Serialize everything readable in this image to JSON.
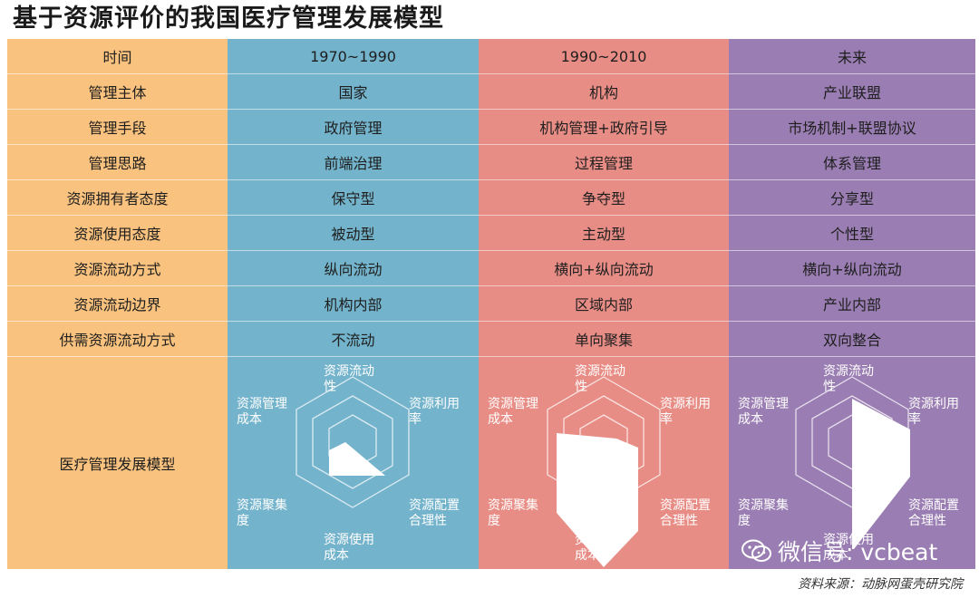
{
  "title": "基于资源评价的我国医疗管理发展模型",
  "header": {
    "label": "时间",
    "periods": [
      "1970~1990",
      "1990~2010",
      "未来"
    ]
  },
  "rows": [
    {
      "label": "管理主体",
      "values": [
        "国家",
        "机构",
        "产业联盟"
      ]
    },
    {
      "label": "管理手段",
      "values": [
        "政府管理",
        "机构管理+政府引导",
        "市场机制+联盟协议"
      ]
    },
    {
      "label": "管理思路",
      "values": [
        "前端治理",
        "过程管理",
        "体系管理"
      ]
    },
    {
      "label": "资源拥有者态度",
      "values": [
        "保守型",
        "争夺型",
        "分享型"
      ]
    },
    {
      "label": "资源使用态度",
      "values": [
        "被动型",
        "主动型",
        "个性型"
      ]
    },
    {
      "label": "资源流动方式",
      "values": [
        "纵向流动",
        "横向+纵向流动",
        "横向+纵向流动"
      ]
    },
    {
      "label": "资源流动边界",
      "values": [
        "机构内部",
        "区域内部",
        "产业内部"
      ]
    },
    {
      "label": "供需资源流动方式",
      "values": [
        "不流动",
        "单向聚集",
        "双向整合"
      ]
    }
  ],
  "model": {
    "label": "医疗管理发展模型",
    "axes": [
      {
        "line1": "资源流动",
        "line2": "性"
      },
      {
        "line1": "资源利用",
        "line2": "率"
      },
      {
        "line1": "资源配置",
        "line2": "合理性"
      },
      {
        "line1": "资源使用",
        "line2": "成本"
      },
      {
        "line1": "资源聚集",
        "line2": "度"
      },
      {
        "line1": "资源管理",
        "line2": "成本"
      }
    ]
  },
  "watermark": {
    "text": "微信号: vcbeat",
    "icon": "wechat-icon"
  },
  "source": "资料来源：动脉网蛋壳研究院"
}
